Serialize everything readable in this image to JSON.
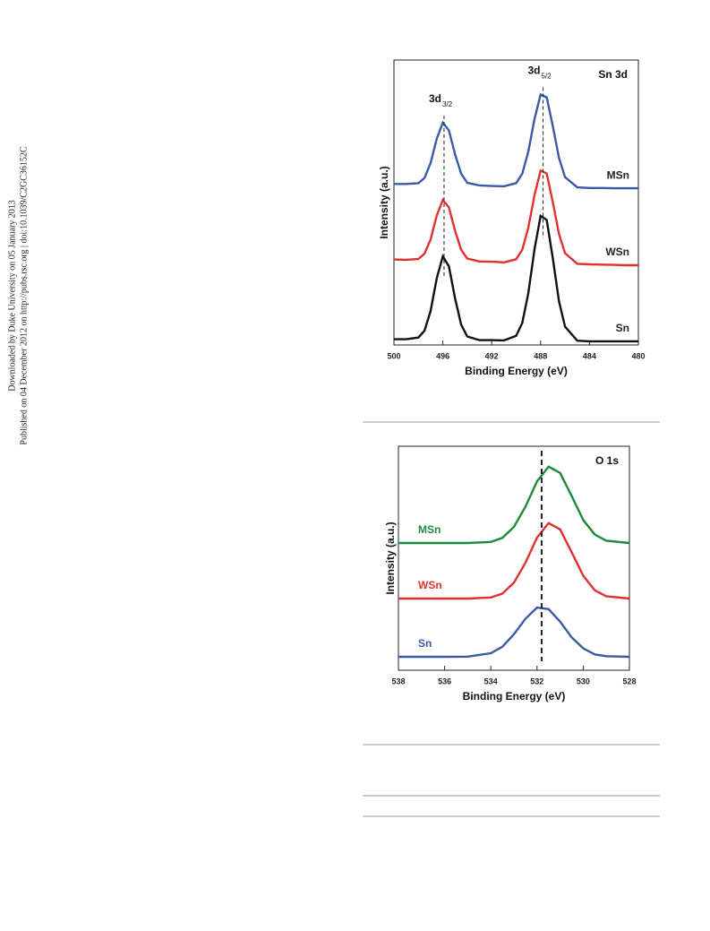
{
  "sidebar": {
    "line1": "Downloaded by Duke University on 05 January 2013",
    "line2": "Published on 04 December 2012 on http://pubs.rsc.org | doi:10.1039/C2GC36152C"
  },
  "chart_data": [
    {
      "type": "line",
      "title": "Sn 3d",
      "xlabel": "Binding Energy (eV)",
      "ylabel": "Intensity (a.u.)",
      "x": [
        500,
        499,
        498,
        497.5,
        497,
        496.5,
        496,
        495.5,
        495,
        494.5,
        494,
        493,
        492,
        491,
        490,
        489.5,
        489,
        488.5,
        488,
        487.5,
        487,
        486.5,
        486,
        485,
        484,
        483,
        482,
        481,
        480
      ],
      "xlim": [
        500,
        480
      ],
      "xticks": [
        500,
        496,
        492,
        488,
        484,
        480
      ],
      "ylim": [
        0,
        100
      ],
      "series_label_position": "right",
      "series": [
        {
          "name": "MSn",
          "color": "#3a5aa8",
          "values": [
            56.5,
            56.5,
            56.8,
            58.6,
            63.8,
            72.4,
            78,
            75.3,
            66.9,
            60.1,
            56.9,
            56,
            55.8,
            55.7,
            56.8,
            60.1,
            67.9,
            79.3,
            87.9,
            86.9,
            76.7,
            65.7,
            58.9,
            55.3,
            55.1,
            55.1,
            55,
            55,
            55
          ]
        },
        {
          "name": "WSn",
          "color": "#e0302f",
          "values": [
            30,
            29.9,
            30.2,
            32,
            37,
            45.4,
            50.9,
            48.3,
            40,
            33.4,
            30.3,
            29.3,
            29.2,
            29,
            30.1,
            33.4,
            41.2,
            52.6,
            61.2,
            60.2,
            50,
            39,
            32.2,
            28.5,
            28.3,
            28.2,
            28.1,
            28,
            28
          ]
        },
        {
          "name": "Sn",
          "color": "#111111",
          "values": [
            2,
            2,
            2.6,
            5,
            11.9,
            23.4,
            31.1,
            27.6,
            16.3,
            7.1,
            3,
            1.7,
            1.7,
            1.6,
            3.2,
            7.7,
            18.2,
            33.6,
            45.3,
            43.9,
            30.3,
            15.4,
            6.4,
            1.5,
            1.3,
            1.3,
            1.3,
            1.3,
            1.3
          ]
        }
      ],
      "reference_lines": [
        {
          "x": 495.9,
          "label": "3d",
          "label_sub": "3/2"
        },
        {
          "x": 487.8,
          "label": "3d",
          "label_sub": "5/2"
        }
      ]
    },
    {
      "type": "line",
      "title": "O 1s",
      "xlabel": "Binding Energy (eV)",
      "ylabel": "Intensity (a.u.)",
      "x": [
        538,
        537,
        536,
        535,
        534,
        533.5,
        533,
        532.5,
        532,
        531.5,
        531,
        530.5,
        530,
        529.5,
        529,
        528
      ],
      "xlim": [
        538,
        528
      ],
      "xticks": [
        538,
        536,
        534,
        532,
        530,
        528
      ],
      "ylim": [
        0,
        100
      ],
      "series_label_position": "left",
      "series": [
        {
          "name": "MSn",
          "color": "#1e8a3c",
          "values": [
            56.8,
            56.8,
            56.8,
            56.8,
            57.3,
            59.1,
            64,
            73,
            84.3,
            90.9,
            88.1,
            77.8,
            67.1,
            60.6,
            57.8,
            56.8
          ]
        },
        {
          "name": "WSn",
          "color": "#e0302f",
          "values": [
            32,
            32,
            32,
            32,
            32.5,
            34.2,
            39.1,
            48,
            59.2,
            65.7,
            62.9,
            52.7,
            42.2,
            35.7,
            33,
            32
          ]
        },
        {
          "name": "Sn",
          "color": "#3a5aa8",
          "values": [
            6,
            6,
            6,
            6.1,
            7.6,
            10.5,
            16.1,
            23,
            28,
            27.3,
            21.7,
            14.7,
            9.8,
            7.1,
            6.3,
            6
          ]
        }
      ],
      "reference_lines": [
        {
          "x": 531.8
        }
      ]
    }
  ]
}
